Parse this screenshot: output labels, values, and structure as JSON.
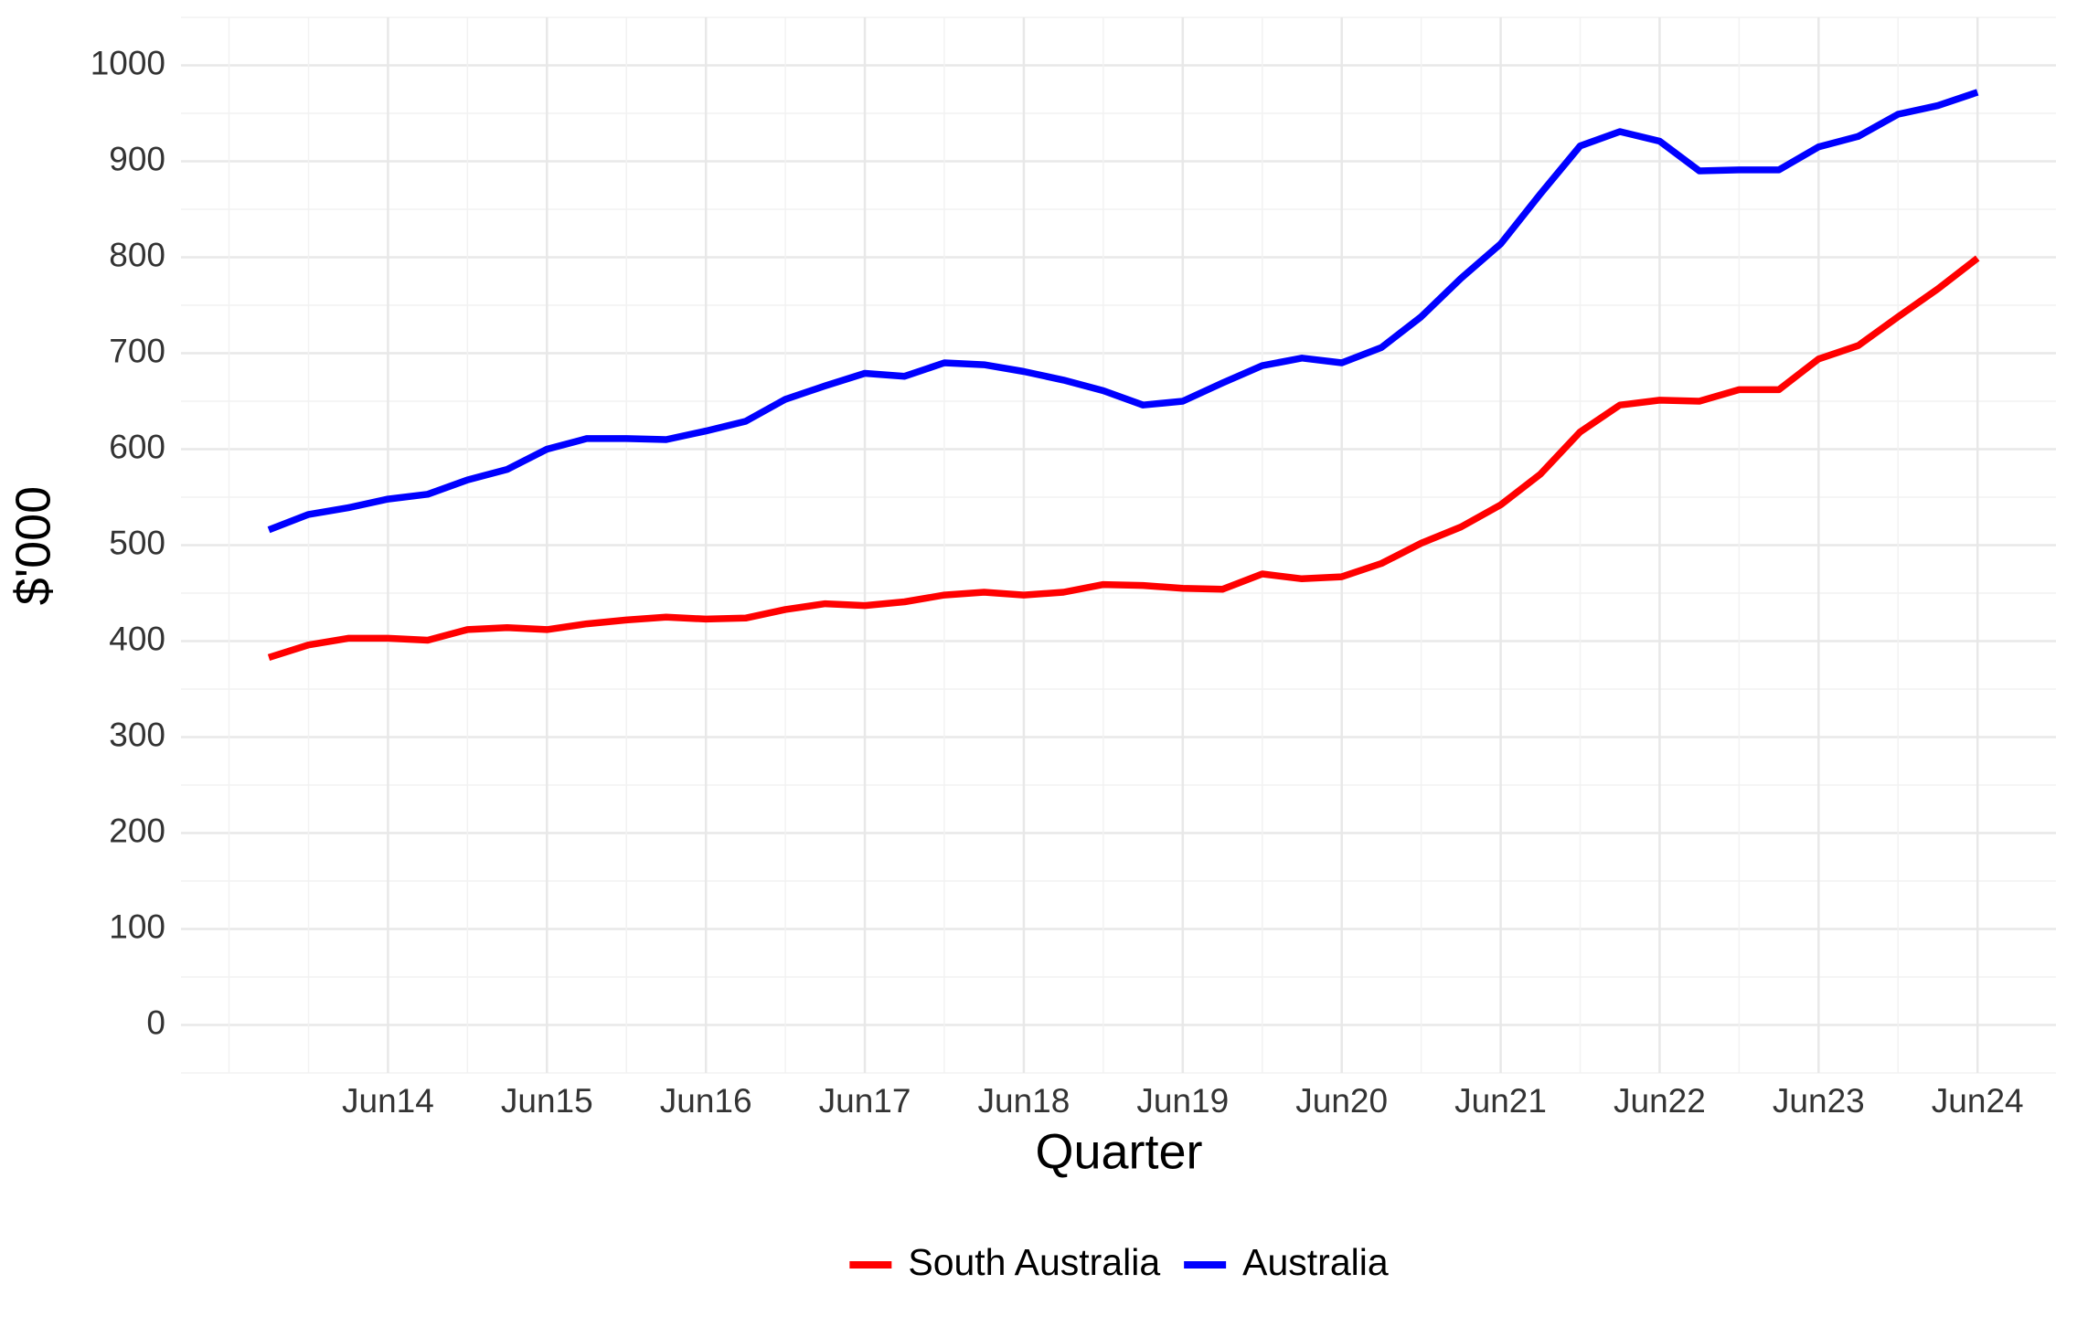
{
  "chart_data": {
    "type": "line",
    "x_label": "Quarter",
    "y_label": "$'000",
    "categories": [
      null,
      null,
      null,
      "Jun14",
      null,
      null,
      null,
      "Jun15",
      null,
      null,
      null,
      "Jun16",
      null,
      null,
      null,
      "Jun17",
      null,
      null,
      null,
      "Jun18",
      null,
      null,
      null,
      "Jun19",
      null,
      null,
      null,
      "Jun20",
      null,
      null,
      null,
      "Jun21",
      null,
      null,
      null,
      "Jun22",
      null,
      null,
      null,
      "Jun23",
      null,
      null,
      null,
      "Jun24"
    ],
    "series": [
      {
        "name": "South Australia",
        "color": "#ff0000",
        "values": [
          383,
          396,
          403,
          403,
          401,
          412,
          414,
          412,
          418,
          422,
          425,
          423,
          424,
          433,
          439,
          437,
          441,
          448,
          451,
          448,
          451,
          459,
          458,
          455,
          454,
          470,
          465,
          467,
          481,
          502,
          519,
          542,
          574,
          618,
          646,
          651,
          650,
          662,
          662,
          694,
          708,
          738,
          767,
          799
        ]
      },
      {
        "name": "Australia",
        "color": "#0000ff",
        "values": [
          516,
          532,
          539,
          548,
          553,
          568,
          579,
          600,
          611,
          611,
          610,
          619,
          629,
          652,
          666,
          679,
          676,
          690,
          688,
          681,
          672,
          661,
          646,
          650,
          669,
          687,
          695,
          690,
          706,
          738,
          778,
          814,
          866,
          916,
          931,
          921,
          890,
          891,
          891,
          915,
          926,
          949,
          958,
          972
        ]
      }
    ],
    "ylim": [
      -50,
      1050
    ],
    "yticks": [
      0,
      100,
      200,
      300,
      400,
      500,
      600,
      700,
      800,
      900,
      1000
    ],
    "grid": true,
    "legend": "bottom"
  }
}
